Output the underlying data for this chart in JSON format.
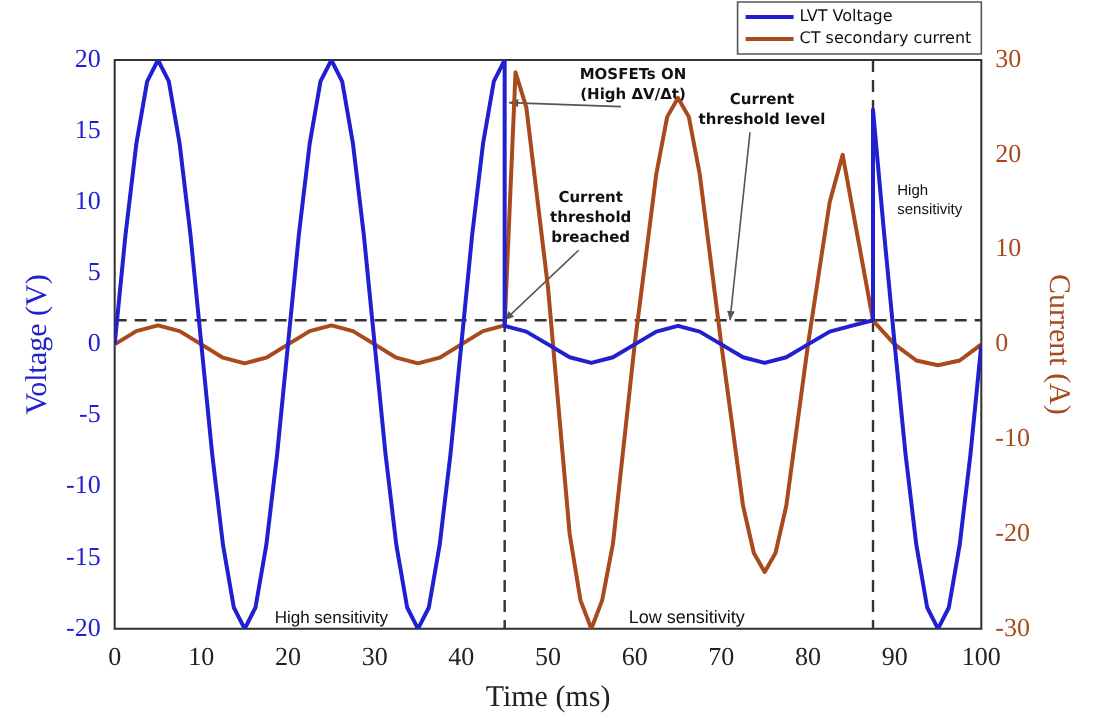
{
  "chart_data": {
    "type": "line",
    "xlabel": "Time (ms)",
    "ylabel": "Voltage (V)",
    "y2label": "Current (A)",
    "xlim": [
      0,
      100
    ],
    "xticks": [
      0,
      10,
      20,
      30,
      40,
      50,
      60,
      70,
      80,
      90,
      100
    ],
    "ylim": [
      -20,
      20
    ],
    "yticks": [
      -20,
      -15,
      -10,
      -5,
      0,
      5,
      10,
      15,
      20
    ],
    "y2lim": [
      -30,
      30
    ],
    "y2ticks": [
      -30,
      -20,
      -10,
      0,
      10,
      20,
      30
    ],
    "grid": false,
    "legend": "top right",
    "marker": "none",
    "line_style": "solid",
    "series": [
      {
        "name": "LVT Voltage",
        "color": "#2020d0",
        "x": [
          0,
          1.25,
          2.5,
          3.75,
          5,
          6.25,
          7.5,
          8.75,
          10,
          11.25,
          12.5,
          13.75,
          15,
          16.25,
          17.5,
          18.75,
          20,
          21.25,
          22.5,
          23.75,
          25,
          26.25,
          27.5,
          28.75,
          30,
          31.25,
          32.5,
          33.75,
          35,
          36.25,
          37.5,
          38.75,
          40,
          41.25,
          42.5,
          43.75,
          45,
          45,
          47.5,
          50,
          52.5,
          55,
          57.5,
          60,
          62.5,
          65,
          67.5,
          70,
          72.5,
          75,
          77.5,
          80,
          82.5,
          85,
          87.5,
          87.5,
          88.75,
          90,
          91.25,
          92.5,
          93.75,
          95,
          96.25,
          97.5,
          98.75,
          100
        ],
        "values": [
          0,
          7.7,
          14.1,
          18.5,
          20,
          18.5,
          14.1,
          7.7,
          0,
          -7.7,
          -14.1,
          -18.5,
          -20,
          -18.5,
          -14.1,
          -7.7,
          0,
          7.7,
          14.1,
          18.5,
          20,
          18.5,
          14.1,
          7.7,
          0,
          -7.7,
          -14.1,
          -18.5,
          -20,
          -18.5,
          -14.1,
          -7.7,
          0,
          7.7,
          14.1,
          18.5,
          20,
          1.3,
          0.9,
          0,
          -0.9,
          -1.3,
          -0.9,
          0,
          0.9,
          1.3,
          0.9,
          0,
          -0.9,
          -1.3,
          -0.9,
          0,
          0.9,
          1.3,
          1.7,
          16.5,
          8,
          0,
          -7.7,
          -14.1,
          -18.5,
          -20,
          -18.5,
          -14.1,
          -7.7,
          0
        ]
      },
      {
        "name": "CT secondary current",
        "color": "#a84a1e",
        "axis": "y2",
        "x": [
          0,
          2.5,
          5,
          7.5,
          10,
          12.5,
          15,
          17.5,
          20,
          22.5,
          25,
          27.5,
          30,
          32.5,
          35,
          37.5,
          40,
          42.5,
          45,
          46.25,
          47.5,
          50,
          52.5,
          53.75,
          55,
          56.25,
          57.5,
          60,
          62.5,
          63.75,
          65,
          66.25,
          67.5,
          70,
          72.5,
          73.75,
          75,
          76.25,
          77.5,
          80,
          82.5,
          84,
          87.5,
          90,
          92.5,
          95,
          97.5,
          100
        ],
        "values": [
          0,
          1.4,
          2,
          1.4,
          0,
          -1.4,
          -2,
          -1.4,
          0,
          1.4,
          2,
          1.4,
          0,
          -1.4,
          -2,
          -1.4,
          0,
          1.4,
          2,
          28.7,
          25,
          6,
          -20,
          -27,
          -30,
          -27,
          -21,
          0,
          18,
          24,
          26,
          24,
          18,
          0,
          -17,
          -22,
          -24,
          -22,
          -17,
          0,
          15,
          20,
          2.5,
          0,
          -1.7,
          -2.2,
          -1.7,
          0
        ]
      }
    ],
    "ref_lines": [
      {
        "axis": "y",
        "value": 1.7,
        "line_style": "dashed",
        "color": "#333333"
      },
      {
        "axis": "x",
        "value": 45,
        "line_style": "dashed",
        "color": "#333333"
      },
      {
        "axis": "x",
        "value": 87.5,
        "line_style": "dashed",
        "color": "#333333"
      }
    ],
    "annotations": [
      {
        "text": "MOSFETs ON (High ΔV/Δt)",
        "x": 45.5,
        "y": 17
      },
      {
        "text": "Current threshold breached",
        "x": 45,
        "y": 1.7
      },
      {
        "text": "Current threshold level",
        "x": 71,
        "y": 1.7
      },
      "High sensitivity",
      "Low sensitivity",
      "High sensitivity"
    ]
  }
}
